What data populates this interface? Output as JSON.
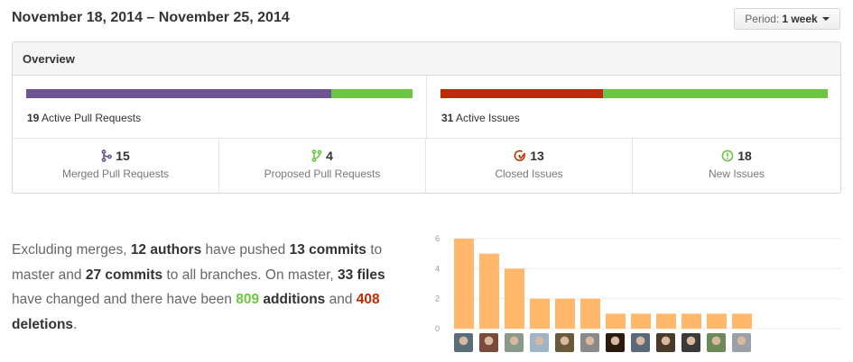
{
  "header": {
    "date_range": "November 18, 2014 – November 25, 2014",
    "period_label": "Period:",
    "period_value": "1 week"
  },
  "overview": {
    "title": "Overview",
    "pull_requests": {
      "count": "19",
      "label": "Active Pull Requests",
      "merged_fraction": 0.79,
      "merged_color": "#6e5494",
      "proposed_color": "#6cc644"
    },
    "issues": {
      "count": "31",
      "label": "Active Issues",
      "closed_fraction": 0.42,
      "closed_color": "#bd2c00",
      "new_color": "#6cc644"
    },
    "stats": [
      {
        "value": "15",
        "label": "Merged Pull Requests",
        "icon": "git-merge-icon",
        "color": "#6e5494"
      },
      {
        "value": "4",
        "label": "Proposed Pull Requests",
        "icon": "git-pull-request-icon",
        "color": "#6cc644"
      },
      {
        "value": "13",
        "label": "Closed Issues",
        "icon": "issue-closed-icon",
        "color": "#bd2c00"
      },
      {
        "value": "18",
        "label": "New Issues",
        "icon": "issue-opened-icon",
        "color": "#6cc644"
      }
    ]
  },
  "summary": {
    "t1": "Excluding merges, ",
    "authors": "12 authors",
    "t2": " have pushed ",
    "commits_master": "13 commits",
    "t3": " to master and ",
    "commits_all": "27 commits",
    "t4": " to all branches. On master, ",
    "files": "33 files",
    "t5": " have changed and there have been ",
    "additions_num": "809",
    "additions_word": " additions",
    "t6": " and ",
    "deletions_num": "408",
    "deletions_word": "deletions",
    "t7": "."
  },
  "chart_data": {
    "type": "bar",
    "categories": [
      "1",
      "2",
      "3",
      "4",
      "5",
      "6",
      "7",
      "8",
      "9",
      "10",
      "11",
      "12"
    ],
    "values": [
      6,
      5,
      4,
      2,
      2,
      2,
      1,
      1,
      1,
      1,
      1,
      1
    ],
    "yticks": [
      "0",
      "2",
      "4",
      "6"
    ],
    "ylim": [
      0,
      6
    ],
    "bar_color": "#ffb86c",
    "grid": true
  },
  "avatars": [
    {
      "color": "#5a6e7a"
    },
    {
      "color": "#7a4a3a"
    },
    {
      "color": "#8a9a8a"
    },
    {
      "color": "#a0b4c8"
    },
    {
      "color": "#6a5a3a"
    },
    {
      "color": "#8a8a8a"
    },
    {
      "color": "#2a1a10"
    },
    {
      "color": "#5a6a7a"
    },
    {
      "color": "#4a3a2a"
    },
    {
      "color": "#3a3a3a"
    },
    {
      "color": "#6a8a5a"
    },
    {
      "color": "#9aa0a8"
    }
  ]
}
